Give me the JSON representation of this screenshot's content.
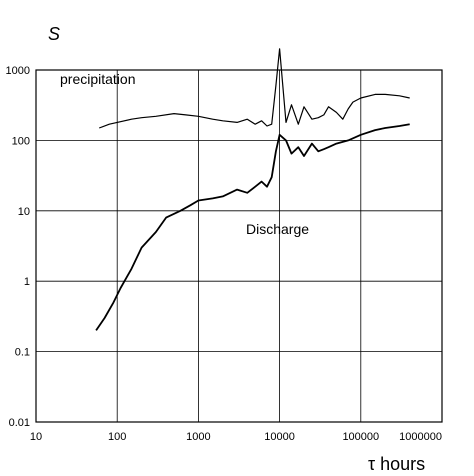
{
  "chart_data": {
    "type": "line",
    "title": "",
    "ylabel": "S",
    "xlabel": "τ hours",
    "xscale": "log",
    "yscale": "log",
    "xlim": [
      10,
      1000000
    ],
    "ylim": [
      0.01,
      1000
    ],
    "grid": true,
    "x_ticks": [
      "10",
      "100",
      "1000",
      "10000",
      "100000",
      "1000000"
    ],
    "y_ticks": [
      "0.01",
      "0.1",
      "1",
      "10",
      "100",
      "1000"
    ],
    "series": [
      {
        "name": "precipitation",
        "color": "#000000",
        "x": [
          60,
          80,
          100,
          150,
          200,
          300,
          500,
          700,
          1000,
          1500,
          2000,
          3000,
          4000,
          5000,
          6000,
          7000,
          8000,
          9000,
          10000,
          12000,
          14000,
          17000,
          20000,
          25000,
          30000,
          35000,
          40000,
          50000,
          60000,
          70000,
          80000,
          100000,
          150000,
          200000,
          300000,
          400000
        ],
        "y": [
          150,
          170,
          180,
          200,
          210,
          220,
          240,
          230,
          220,
          200,
          190,
          180,
          200,
          170,
          190,
          160,
          170,
          600,
          2000,
          180,
          320,
          170,
          300,
          200,
          210,
          230,
          300,
          250,
          200,
          280,
          350,
          400,
          450,
          450,
          430,
          400
        ]
      },
      {
        "name": "Discharge",
        "color": "#000000",
        "x": [
          55,
          70,
          90,
          110,
          150,
          200,
          300,
          400,
          600,
          800,
          1000,
          1500,
          2000,
          3000,
          4000,
          5000,
          6000,
          7000,
          8000,
          9000,
          10000,
          12000,
          14000,
          17000,
          20000,
          25000,
          30000,
          35000,
          40000,
          50000,
          70000,
          100000,
          150000,
          200000,
          300000,
          400000
        ],
        "y": [
          0.2,
          0.3,
          0.5,
          0.8,
          1.5,
          3,
          5,
          8,
          10,
          12,
          14,
          15,
          16,
          20,
          18,
          22,
          26,
          22,
          30,
          70,
          120,
          100,
          65,
          80,
          60,
          90,
          70,
          75,
          80,
          90,
          100,
          120,
          140,
          150,
          160,
          170
        ]
      }
    ]
  }
}
